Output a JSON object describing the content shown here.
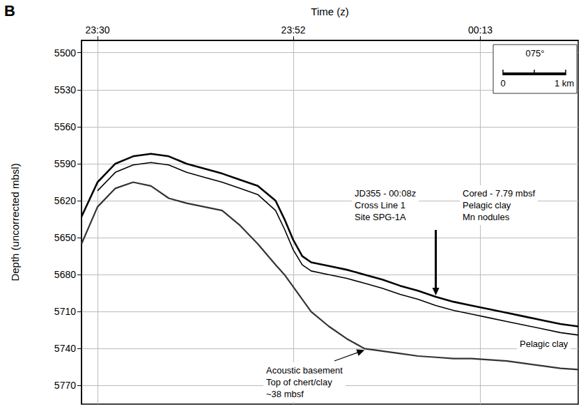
{
  "chart_data": {
    "type": "line",
    "panel_label": "B",
    "x_label": "Time (z)",
    "y_label": "Depth (uncorrected mbsl)",
    "x": [
      28.2,
      30,
      32,
      34,
      36,
      38,
      40,
      42,
      44,
      46,
      48,
      50,
      51,
      52,
      53,
      54,
      56,
      58,
      60,
      62,
      64,
      66,
      68,
      70,
      72,
      74,
      76,
      78,
      80,
      82,
      84
    ],
    "series": [
      {
        "color": "#000000",
        "line_style": "solid",
        "values": [
          5633,
          5605,
          5590,
          5584,
          5582,
          5584,
          5590,
          5594,
          5598,
          5603,
          5608,
          5620,
          5635,
          5652,
          5665,
          5670,
          5673,
          5676,
          5680,
          5684,
          5689,
          5693,
          5698,
          5702,
          5705,
          5708,
          5711,
          5714,
          5717,
          5720,
          5722
        ]
      },
      {
        "color": "#000000",
        "line_style": "solid",
        "values": [
          null,
          5612,
          5597,
          5591,
          5589,
          5591,
          5597,
          5601,
          5605,
          5610,
          5615,
          5628,
          5643,
          5660,
          5672,
          5677,
          5680,
          5683,
          5687,
          5691,
          5696,
          5700,
          5705,
          5709,
          5712,
          5715,
          5718,
          5721,
          5724,
          5727,
          5729
        ]
      },
      {
        "color": "#333333",
        "line_style": "solid",
        "values": [
          5655,
          5625,
          5610,
          5605,
          5608,
          5618,
          5622,
          5625,
          5628,
          5640,
          5655,
          5672,
          5680,
          5690,
          5700,
          5710,
          5722,
          5732,
          5740,
          5742,
          5744,
          5746,
          5747,
          5748,
          5748,
          5749,
          5750,
          5752,
          5754,
          5756,
          5757
        ]
      }
    ],
    "xlim": [
      28.2,
      84
    ],
    "xticks": [
      {
        "value": 30,
        "label": "23:30"
      },
      {
        "value": 52,
        "label": "23:52"
      },
      {
        "value": 73,
        "label": "00:13"
      }
    ],
    "ylim": [
      5490,
      5785
    ],
    "yticks": [
      5500,
      5530,
      5560,
      5590,
      5620,
      5650,
      5680,
      5710,
      5740,
      5770
    ],
    "grid": true,
    "annotations": [
      {
        "lines": [
          "JD355 - 00:08z",
          "Cross Line 1",
          "Site SPG-1A"
        ],
        "at": [
          68,
          5698
        ]
      },
      {
        "lines": [
          "Cored - 7.79 mbsf",
          "Pelagic clay",
          "Mn nodules"
        ]
      },
      {
        "lines": [
          "Pelagic clay"
        ]
      },
      {
        "lines": [
          "Acoustic basement",
          "Top of chert/clay",
          "~38 mbsf"
        ],
        "at": [
          60,
          5740
        ]
      }
    ],
    "scale_bar": {
      "heading": "075°",
      "labels": [
        "0",
        "1 km"
      ]
    }
  }
}
